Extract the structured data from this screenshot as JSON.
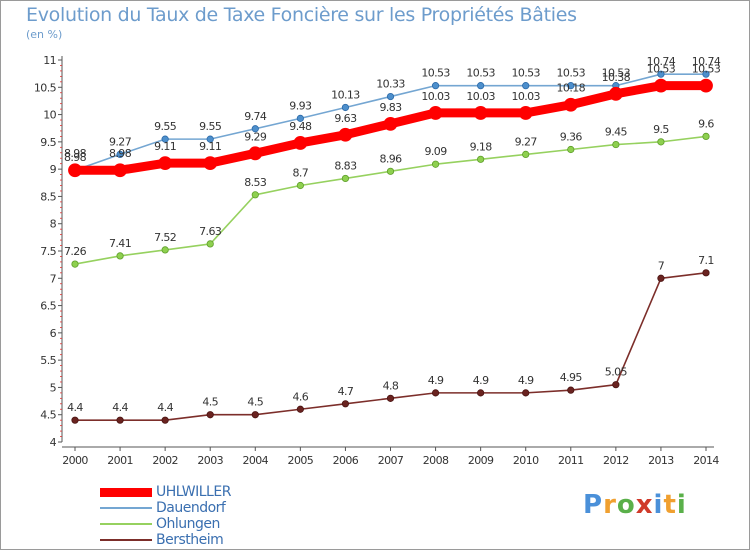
{
  "title": "Evolution du Taux de Taxe Foncière sur les Propriétés Bâties",
  "unit_label": "(en %)",
  "logo_text": "Proxiti",
  "chart_data": {
    "type": "line",
    "title": "Evolution du Taux de Taxe Foncière sur les Propriétés Bâties",
    "ylabel": "(en %)",
    "xlabel": "",
    "x": [
      "2000",
      "2001",
      "2002",
      "2003",
      "2004",
      "2005",
      "2006",
      "2007",
      "2008",
      "2009",
      "2010",
      "2011",
      "2012",
      "2013",
      "2014"
    ],
    "ylim": [
      4,
      11
    ],
    "yticks": [
      "4",
      "4.5",
      "5",
      "5.5",
      "6",
      "6.5",
      "7",
      "7.5",
      "8",
      "8.5",
      "9",
      "9.5",
      "10",
      "10.5",
      "11"
    ],
    "legend_position": "bottom-left",
    "series": [
      {
        "name": "UHLWILLER",
        "color": "#ff0000",
        "values": [
          8.98,
          8.98,
          9.11,
          9.11,
          9.29,
          9.48,
          9.63,
          9.83,
          10.03,
          10.03,
          10.03,
          10.18,
          10.38,
          10.53,
          10.53
        ],
        "labels": [
          "8.98",
          "8.98",
          "9.11",
          "9.11",
          "9.29",
          "9.48",
          "9.63",
          "9.83",
          "10.03",
          "10.03",
          "10.03",
          "10.18",
          "10.38",
          "10.53",
          "10.53"
        ]
      },
      {
        "name": "Dauendorf",
        "color": "#74a6d2",
        "values": [
          8.98,
          9.27,
          9.55,
          9.55,
          9.74,
          9.93,
          10.13,
          10.33,
          10.53,
          10.53,
          10.53,
          10.53,
          10.53,
          10.74,
          10.74
        ],
        "labels": [
          "8.98",
          "9.27",
          "9.55",
          "9.55",
          "9.74",
          "9.93",
          "10.13",
          "10.33",
          "10.53",
          "10.53",
          "10.53",
          "10.53",
          "10.53",
          "10.74",
          "10.74"
        ]
      },
      {
        "name": "Ohlungen",
        "color": "#96d15f",
        "values": [
          7.26,
          7.41,
          7.52,
          7.63,
          8.53,
          8.7,
          8.83,
          8.96,
          9.09,
          9.18,
          9.27,
          9.36,
          9.45,
          9.5,
          9.6
        ],
        "labels": [
          "7.26",
          "7.41",
          "7.52",
          "7.63",
          "8.53",
          "8.7",
          "8.83",
          "8.96",
          "9.09",
          "9.18",
          "9.27",
          "9.36",
          "9.45",
          "9.5",
          "9.6"
        ]
      },
      {
        "name": "Berstheim",
        "color": "#7c2e2a",
        "values": [
          4.4,
          4.4,
          4.4,
          4.5,
          4.5,
          4.6,
          4.7,
          4.8,
          4.9,
          4.9,
          4.9,
          4.95,
          5.05,
          7,
          7.1
        ],
        "labels": [
          "4.4",
          "4.4",
          "4.4",
          "4.5",
          "4.5",
          "4.6",
          "4.7",
          "4.8",
          "4.9",
          "4.9",
          "4.9",
          "4.95",
          "5.05",
          "7",
          "7.1"
        ]
      }
    ]
  }
}
